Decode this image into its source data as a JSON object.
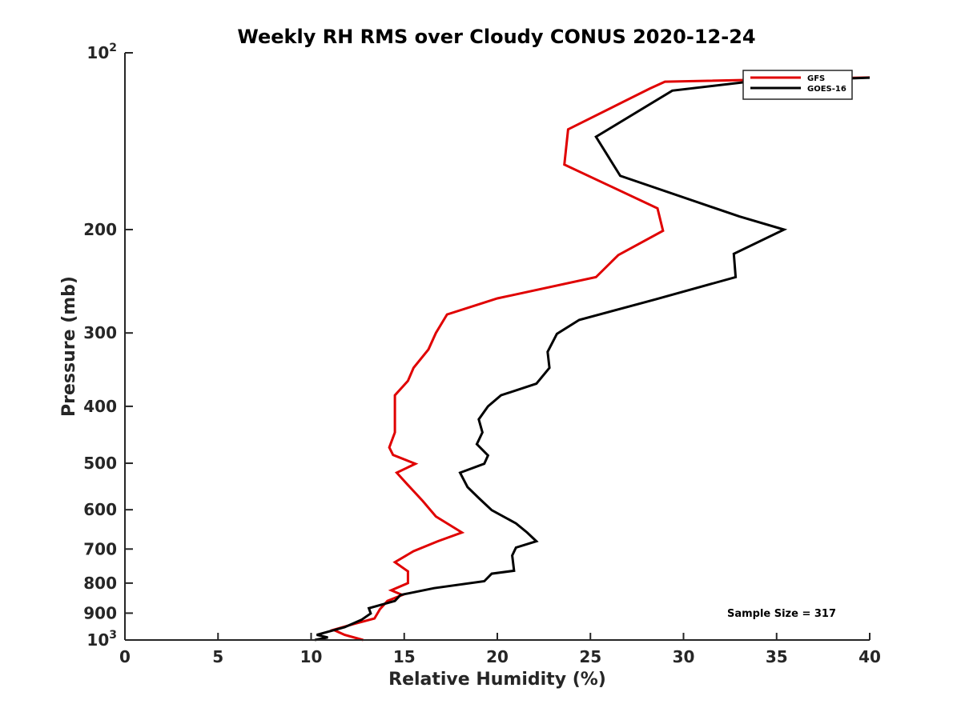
{
  "chart_data": {
    "type": "line",
    "title": "Weekly RH RMS over Cloudy CONUS 2020-12-24",
    "xlabel": "Relative Humidity (%)",
    "ylabel": "Pressure (mb)",
    "xlim": [
      0,
      40
    ],
    "ylim": [
      100,
      1000
    ],
    "y_scale": "log",
    "y_reversed": true,
    "grid": false,
    "legend_position": "top-right",
    "x_ticks": [
      0,
      5,
      10,
      15,
      20,
      25,
      30,
      35,
      40
    ],
    "x_tick_labels": [
      "0",
      "5",
      "10",
      "15",
      "20",
      "25",
      "30",
      "35",
      "40"
    ],
    "y_ticks": [
      100,
      200,
      300,
      400,
      500,
      600,
      700,
      800,
      900,
      1000
    ],
    "y_tick_labels": [
      {
        "base": "10",
        "exp": "2"
      },
      {
        "base": "200",
        "exp": ""
      },
      {
        "base": "300",
        "exp": ""
      },
      {
        "base": "400",
        "exp": ""
      },
      {
        "base": "500",
        "exp": ""
      },
      {
        "base": "600",
        "exp": ""
      },
      {
        "base": "700",
        "exp": ""
      },
      {
        "base": "800",
        "exp": ""
      },
      {
        "base": "900",
        "exp": ""
      },
      {
        "base": "10",
        "exp": "3"
      }
    ],
    "annotation": "Sample Size = 317",
    "series": [
      {
        "name": "GFS",
        "color": "#e00000",
        "points": [
          [
            41.0,
            110
          ],
          [
            29.0,
            112
          ],
          [
            28.2,
            115
          ],
          [
            23.8,
            135
          ],
          [
            23.6,
            155
          ],
          [
            28.6,
            184
          ],
          [
            28.9,
            201
          ],
          [
            26.5,
            221
          ],
          [
            25.3,
            241
          ],
          [
            20.0,
            262
          ],
          [
            17.3,
            279
          ],
          [
            16.7,
            300
          ],
          [
            16.3,
            320
          ],
          [
            15.5,
            344
          ],
          [
            15.2,
            362
          ],
          [
            14.5,
            383
          ],
          [
            14.5,
            400
          ],
          [
            14.5,
            421
          ],
          [
            14.5,
            443
          ],
          [
            14.2,
            470
          ],
          [
            14.4,
            484
          ],
          [
            15.6,
            501
          ],
          [
            14.6,
            519
          ],
          [
            15.3,
            549
          ],
          [
            16.0,
            580
          ],
          [
            16.7,
            616
          ],
          [
            18.1,
            656
          ],
          [
            16.8,
            679
          ],
          [
            15.5,
            706
          ],
          [
            14.5,
            737
          ],
          [
            15.2,
            764
          ],
          [
            15.2,
            800
          ],
          [
            14.3,
            823
          ],
          [
            14.9,
            838
          ],
          [
            14.1,
            858
          ],
          [
            13.7,
            886
          ],
          [
            13.4,
            919
          ],
          [
            12.3,
            939
          ],
          [
            11.2,
            961
          ],
          [
            11.8,
            980
          ],
          [
            12.8,
            1000
          ]
        ]
      },
      {
        "name": "GOES-16",
        "color": "#000000",
        "points": [
          [
            41.0,
            110
          ],
          [
            33.5,
            112
          ],
          [
            29.4,
            116
          ],
          [
            25.3,
            139
          ],
          [
            26.6,
            162
          ],
          [
            33.0,
            190
          ],
          [
            35.4,
            200
          ],
          [
            32.7,
            220
          ],
          [
            32.8,
            241
          ],
          [
            28.5,
            263
          ],
          [
            24.4,
            285
          ],
          [
            23.2,
            301
          ],
          [
            22.7,
            323
          ],
          [
            22.8,
            344
          ],
          [
            22.1,
            366
          ],
          [
            20.2,
            383
          ],
          [
            19.5,
            400
          ],
          [
            19.0,
            421
          ],
          [
            19.2,
            443
          ],
          [
            18.9,
            464
          ],
          [
            19.5,
            485
          ],
          [
            19.3,
            501
          ],
          [
            18.0,
            519
          ],
          [
            18.4,
            549
          ],
          [
            19.0,
            573
          ],
          [
            19.7,
            601
          ],
          [
            21.0,
            633
          ],
          [
            21.6,
            656
          ],
          [
            22.1,
            679
          ],
          [
            21.0,
            696
          ],
          [
            20.8,
            718
          ],
          [
            20.9,
            762
          ],
          [
            19.7,
            771
          ],
          [
            19.3,
            794
          ],
          [
            16.6,
            816
          ],
          [
            14.8,
            838
          ],
          [
            14.5,
            858
          ],
          [
            13.1,
            883
          ],
          [
            13.2,
            901
          ],
          [
            12.7,
            924
          ],
          [
            11.8,
            951
          ],
          [
            10.3,
            980
          ],
          [
            10.9,
            990
          ],
          [
            10.2,
            1000
          ]
        ]
      }
    ]
  }
}
